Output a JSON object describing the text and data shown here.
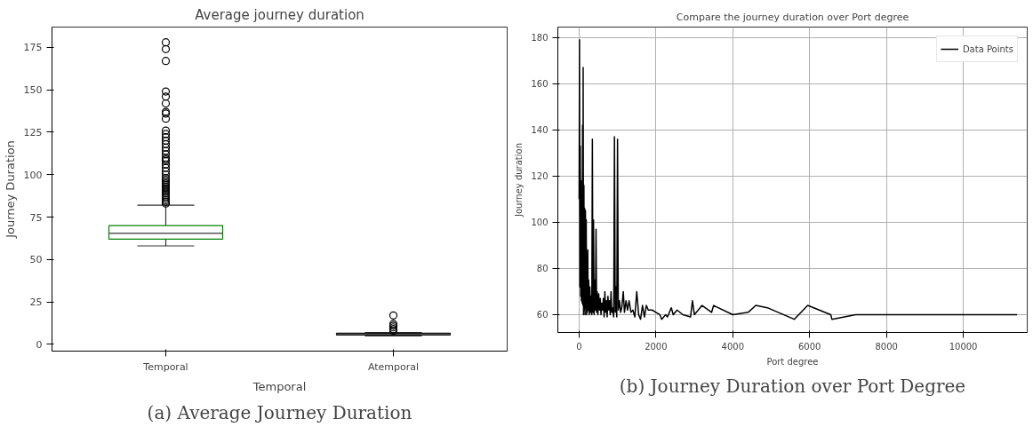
{
  "chart_data": [
    {
      "type": "box",
      "title": "Average journey duration",
      "xlabel": "Temporal",
      "ylabel": "Journey Duration",
      "categories": [
        "Temporal",
        "Atemporal"
      ],
      "colors": [
        "#008000",
        "#000000"
      ],
      "boxes": [
        {
          "low": 58,
          "q1": 62,
          "median": 65.5,
          "q3": 70,
          "high": 82,
          "outliers": [
            83,
            84,
            85,
            86,
            87,
            88,
            89,
            90,
            91,
            92,
            93,
            94,
            95,
            96,
            97,
            98,
            100,
            102,
            104,
            106,
            108,
            109,
            110,
            112,
            114,
            116,
            118,
            120,
            122,
            124,
            126,
            133,
            136,
            137,
            142,
            146,
            149,
            167,
            174,
            178
          ]
        },
        {
          "low": 5,
          "q1": 5.5,
          "median": 6,
          "q3": 6.5,
          "high": 7,
          "outliers": [
            8,
            9,
            10,
            11,
            12,
            17
          ]
        }
      ],
      "ylim": [
        -4,
        187
      ],
      "yticks": [
        0,
        25,
        50,
        75,
        100,
        125,
        150,
        175
      ],
      "grid": false,
      "annotations": [
        "(a) Average Journey Duration"
      ]
    },
    {
      "type": "line",
      "title": "Compare the journey duration over Port degree",
      "xlabel": "Port degree",
      "ylabel": "Journey duration",
      "x": [
        0,
        10,
        20,
        30,
        40,
        50,
        60,
        70,
        80,
        90,
        100,
        105,
        115,
        125,
        135,
        145,
        155,
        165,
        175,
        185,
        195,
        205,
        215,
        225,
        235,
        250,
        265,
        280,
        295,
        310,
        330,
        345,
        360,
        375,
        390,
        410,
        425,
        440,
        455,
        470,
        490,
        510,
        530,
        550,
        570,
        590,
        610,
        630,
        650,
        670,
        690,
        710,
        730,
        750,
        770,
        790,
        810,
        830,
        850,
        870,
        900,
        920,
        940,
        960,
        980,
        1000,
        1020,
        1050,
        1080,
        1110,
        1150,
        1180,
        1220,
        1260,
        1300,
        1350,
        1400,
        1450,
        1500,
        1550,
        1600,
        1650,
        1700,
        1750,
        1800,
        1900,
        2000,
        2100,
        2150,
        2250,
        2300,
        2400,
        2450,
        2550,
        2700,
        2900,
        2950,
        3000,
        3200,
        3450,
        3500,
        4000,
        4400,
        4600,
        4900,
        5600,
        5950,
        6550,
        6580,
        7200,
        11400
      ],
      "series": [
        {
          "name": "Data Points",
          "color": "#000000",
          "values": [
            110,
            179,
            72,
            133,
            68,
            118,
            66,
            112,
            65,
            142,
            64,
            167,
            60,
            116,
            62,
            106,
            60,
            105,
            63,
            101,
            60,
            84,
            61,
            88,
            62,
            75,
            60,
            72,
            61,
            68,
            60,
            136,
            61,
            101,
            60,
            75,
            62,
            97,
            61,
            70,
            60,
            69,
            62,
            67,
            60,
            65,
            62,
            67,
            59,
            70,
            61,
            66,
            59,
            68,
            62,
            66,
            60,
            70,
            61,
            63,
            59,
            137,
            61,
            72,
            59,
            136,
            62,
            66,
            61,
            63,
            70,
            61,
            66,
            62,
            66,
            61,
            62,
            59,
            70,
            60,
            58,
            64,
            59,
            64,
            62,
            62,
            61,
            60,
            58,
            60,
            59,
            63,
            60,
            62,
            60,
            59,
            66,
            60,
            64,
            61,
            64,
            60,
            61,
            64,
            63,
            58,
            64,
            60,
            58,
            60,
            60
          ]
        }
      ],
      "xlim": [
        -554,
        11664
      ],
      "xticks": [
        0,
        2000,
        4000,
        6000,
        8000,
        10000
      ],
      "ylim": [
        52.3,
        184.5
      ],
      "yticks": [
        60,
        80,
        100,
        120,
        140,
        160,
        180
      ],
      "grid": true,
      "legend": "top right",
      "line_style": "solid",
      "marker": "none",
      "annotations": [
        "(b) Journey Duration over Port Degree"
      ]
    }
  ]
}
